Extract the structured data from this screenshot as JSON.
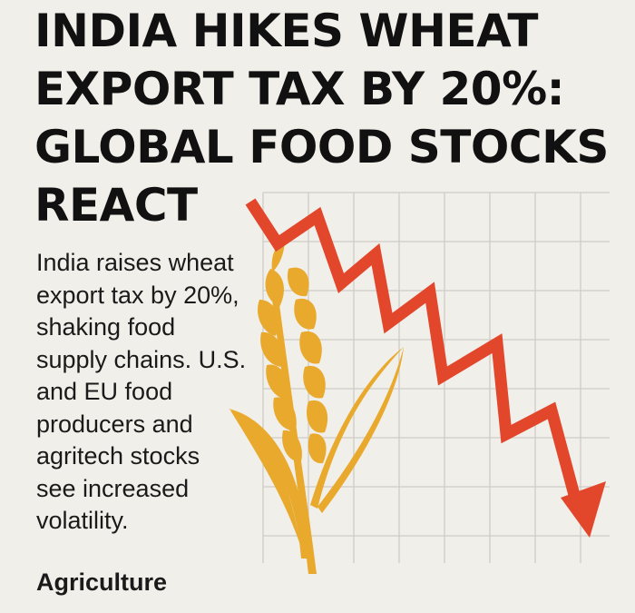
{
  "headline": {
    "lines": [
      "INDIA HIKES WHEAT",
      "EXPORT TAX BY 20%:",
      "GLOBAL FOOD STOCKS",
      "REACT"
    ]
  },
  "summary": {
    "lines": [
      "India raises wheat",
      "export tax by 20%,",
      "shaking food",
      "supply chains. U.S.",
      "and EU food",
      "producers and",
      "agritech stocks",
      "see increased",
      "volatility."
    ]
  },
  "category": "Agriculture",
  "illustration": {
    "icons": [
      "wheat-stalk-icon",
      "down-trend-arrow-icon"
    ],
    "colors": {
      "background": "#f1efea",
      "text": "#151515",
      "grid": "#cfccc6",
      "arrow": "#e2472b",
      "wheat": "#e8a92d"
    }
  }
}
